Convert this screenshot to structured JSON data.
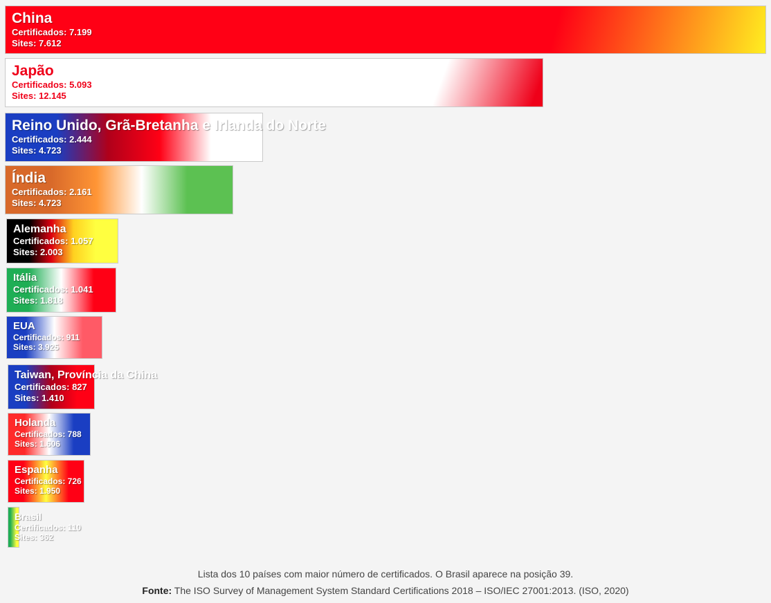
{
  "chart_data": {
    "type": "bar",
    "orientation": "horizontal",
    "title": "",
    "xlabel": "",
    "ylabel": "",
    "categories": [
      "China",
      "Japão",
      "Reino Unido, Grã-Bretanha e Irlanda do Norte",
      "Índia",
      "Alemanha",
      "Itália",
      "EUA",
      "Taiwan, Província da China",
      "Holanda",
      "Espanha",
      "Brasil"
    ],
    "series": [
      {
        "name": "Certificados",
        "values": [
          7199,
          5093,
          2444,
          2161,
          1057,
          1041,
          911,
          827,
          788,
          726,
          110
        ]
      },
      {
        "name": "Sites",
        "values": [
          7612,
          12145,
          4723,
          4723,
          2003,
          1818,
          3925,
          1410,
          1606,
          1950,
          362
        ]
      }
    ],
    "bars": [
      {
        "country": "China",
        "cert_label": "Certificados: 7.199",
        "sites_label": "Sites: 7.612",
        "colors": [
          "#ff0015",
          "#ffee20"
        ]
      },
      {
        "country": "Japão",
        "cert_label": "Certificados: 5.093",
        "sites_label": "Sites: 12.145",
        "colors": [
          "#ffffff",
          "#ef0019"
        ]
      },
      {
        "country": "Reino Unido, Grã-Bretanha e Irlanda do Norte",
        "cert_label": "Certificados: 2.444",
        "sites_label": "Sites: 4.723",
        "colors": [
          "#1a3ec2",
          "#b0001a",
          "#ff0015",
          "#ffffff"
        ]
      },
      {
        "country": "Índia",
        "cert_label": "Certificados: 2.161",
        "sites_label": "Sites: 4.723",
        "colors": [
          "#d8692a",
          "#ff9535",
          "#ffffff",
          "#5cc152"
        ]
      },
      {
        "country": "Alemanha",
        "cert_label": "Certificados: 1.057",
        "sites_label": "Sites: 2.003",
        "colors": [
          "#000000",
          "#dd0010",
          "#ffd020",
          "#ffff40"
        ]
      },
      {
        "country": "Itália",
        "cert_label": "Certificados: 1.041",
        "sites_label": "Sites: 1.818",
        "colors": [
          "#1fae55",
          "#ffffff",
          "#ff0015"
        ]
      },
      {
        "country": "EUA",
        "cert_label": "Certificados: 911",
        "sites_label": "Sites: 3.925",
        "colors": [
          "#1a3ec2",
          "#ffffff",
          "#ff5a66"
        ]
      },
      {
        "country": "Taiwan, Província da China",
        "cert_label": "Certificados: 827",
        "sites_label": "Sites: 1.410",
        "colors": [
          "#1a3ec2",
          "#b0001a",
          "#ff0015"
        ]
      },
      {
        "country": "Holanda",
        "cert_label": "Certificados: 788",
        "sites_label": "Sites: 1.606",
        "colors": [
          "#ff2a2a",
          "#ffffff",
          "#1a3ec2"
        ]
      },
      {
        "country": "Espanha",
        "cert_label": "Certificados: 726",
        "sites_label": "Sites: 1.950",
        "colors": [
          "#ff0015",
          "#ffff40",
          "#ff0015"
        ]
      },
      {
        "country": "Brasil",
        "cert_label": "Certificados: 110",
        "sites_label": "Sites: 362",
        "colors": [
          "#1fae55",
          "#ffff40"
        ]
      }
    ]
  },
  "caption": {
    "line1": "Lista dos 10 países com maior número de certificados. O Brasil aparece na posição 39.",
    "source_label": "Fonte:",
    "source_text": " The ISO Survey of Management System Standard Certifications 2018 – ISO/IEC 27001:2013. (ISO, 2020)"
  }
}
